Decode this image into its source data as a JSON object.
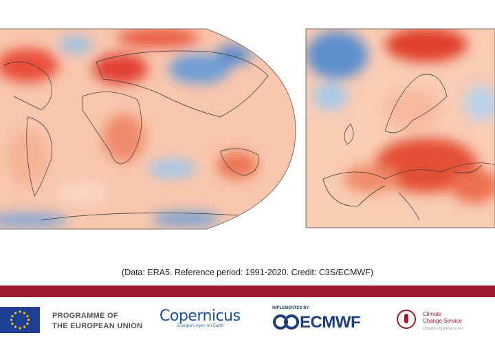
{
  "caption": "(Data: ERA5. Reference period: 1991-2020. Credit: C3S/ECMWF)",
  "footer": {
    "eu": {
      "line1": "PROGRAMME OF",
      "line2": "THE EUROPEAN UNION"
    },
    "copernicus": {
      "name": "Copernicus",
      "tagline": "Europe's eyes on Earth"
    },
    "ecmwf": {
      "label": "IMPLEMENTED BY",
      "name": "ECMWF"
    },
    "c3s": {
      "line1": "Climate",
      "line2": "Change Service",
      "url": "climate.copernicus.eu"
    }
  }
}
